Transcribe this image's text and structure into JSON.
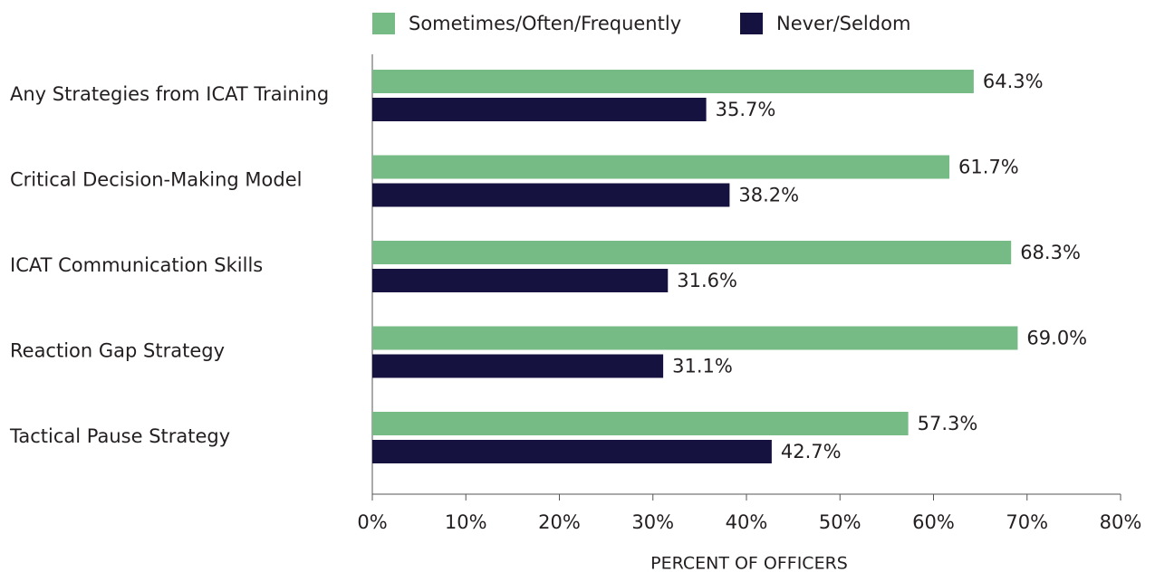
{
  "chart_data": {
    "type": "bar",
    "orientation": "horizontal",
    "x_label": "PERCENT OF OFFICERS",
    "categories": [
      "Any Strategies from ICAT Training",
      "Critical Decision-Making Model",
      "ICAT Communication Skills",
      "Reaction Gap Strategy",
      "Tactical Pause Strategy"
    ],
    "series": [
      {
        "name": "Sometimes/Often/Frequently",
        "color": "#76bb86",
        "values": [
          64.3,
          61.7,
          68.3,
          69.0,
          57.3
        ],
        "value_labels": [
          "64.3%",
          "61.7%",
          "68.3%",
          "69.0%",
          "57.3%"
        ]
      },
      {
        "name": "Never/Seldom",
        "color": "#16123f",
        "values": [
          35.7,
          38.2,
          31.6,
          31.1,
          42.7
        ],
        "value_labels": [
          "35.7%",
          "38.2%",
          "31.6%",
          "31.1%",
          "42.7%"
        ]
      }
    ],
    "xlim": [
      0,
      80
    ],
    "xticks": [
      {
        "value": 0,
        "label": "0%"
      },
      {
        "value": 10,
        "label": "10%"
      },
      {
        "value": 20,
        "label": "20%"
      },
      {
        "value": 30,
        "label": "30%"
      },
      {
        "value": 40,
        "label": "40%"
      },
      {
        "value": 50,
        "label": "50%"
      },
      {
        "value": 60,
        "label": "60%"
      },
      {
        "value": 70,
        "label": "70%"
      },
      {
        "value": 80,
        "label": "80%"
      }
    ],
    "legend": "top"
  }
}
